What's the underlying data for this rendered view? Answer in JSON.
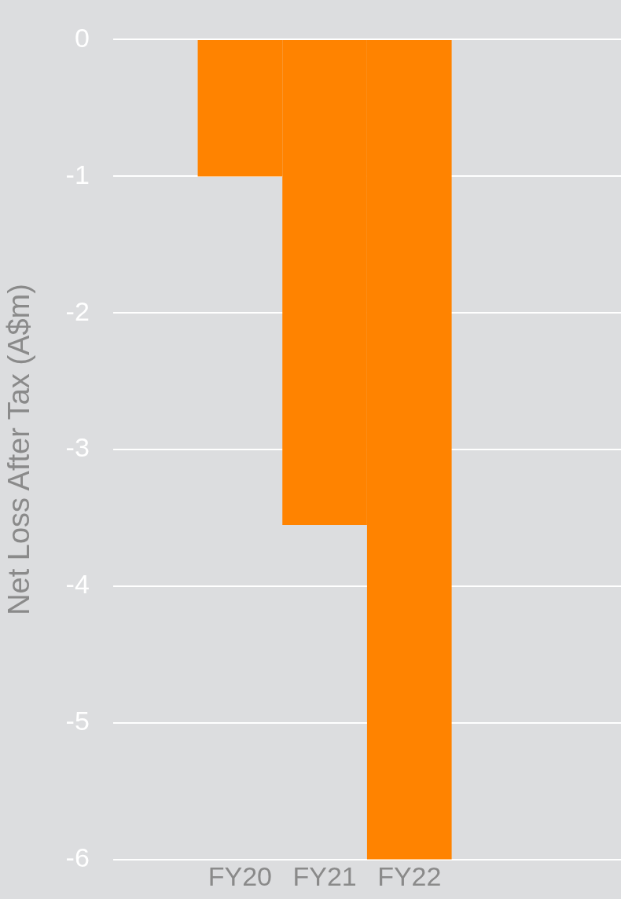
{
  "chart_data": {
    "type": "bar",
    "ylabel": "Net Loss After Tax (A$m)",
    "categories": [
      "FY20",
      "FY21",
      "FY22"
    ],
    "values": [
      -1,
      -3.55,
      -6
    ],
    "color": "#ff8300",
    "ylim": [
      -6,
      0
    ],
    "yticks": [
      -6,
      -5,
      -4,
      -3,
      -2,
      -1,
      0
    ],
    "grid": "y",
    "legend": false
  }
}
